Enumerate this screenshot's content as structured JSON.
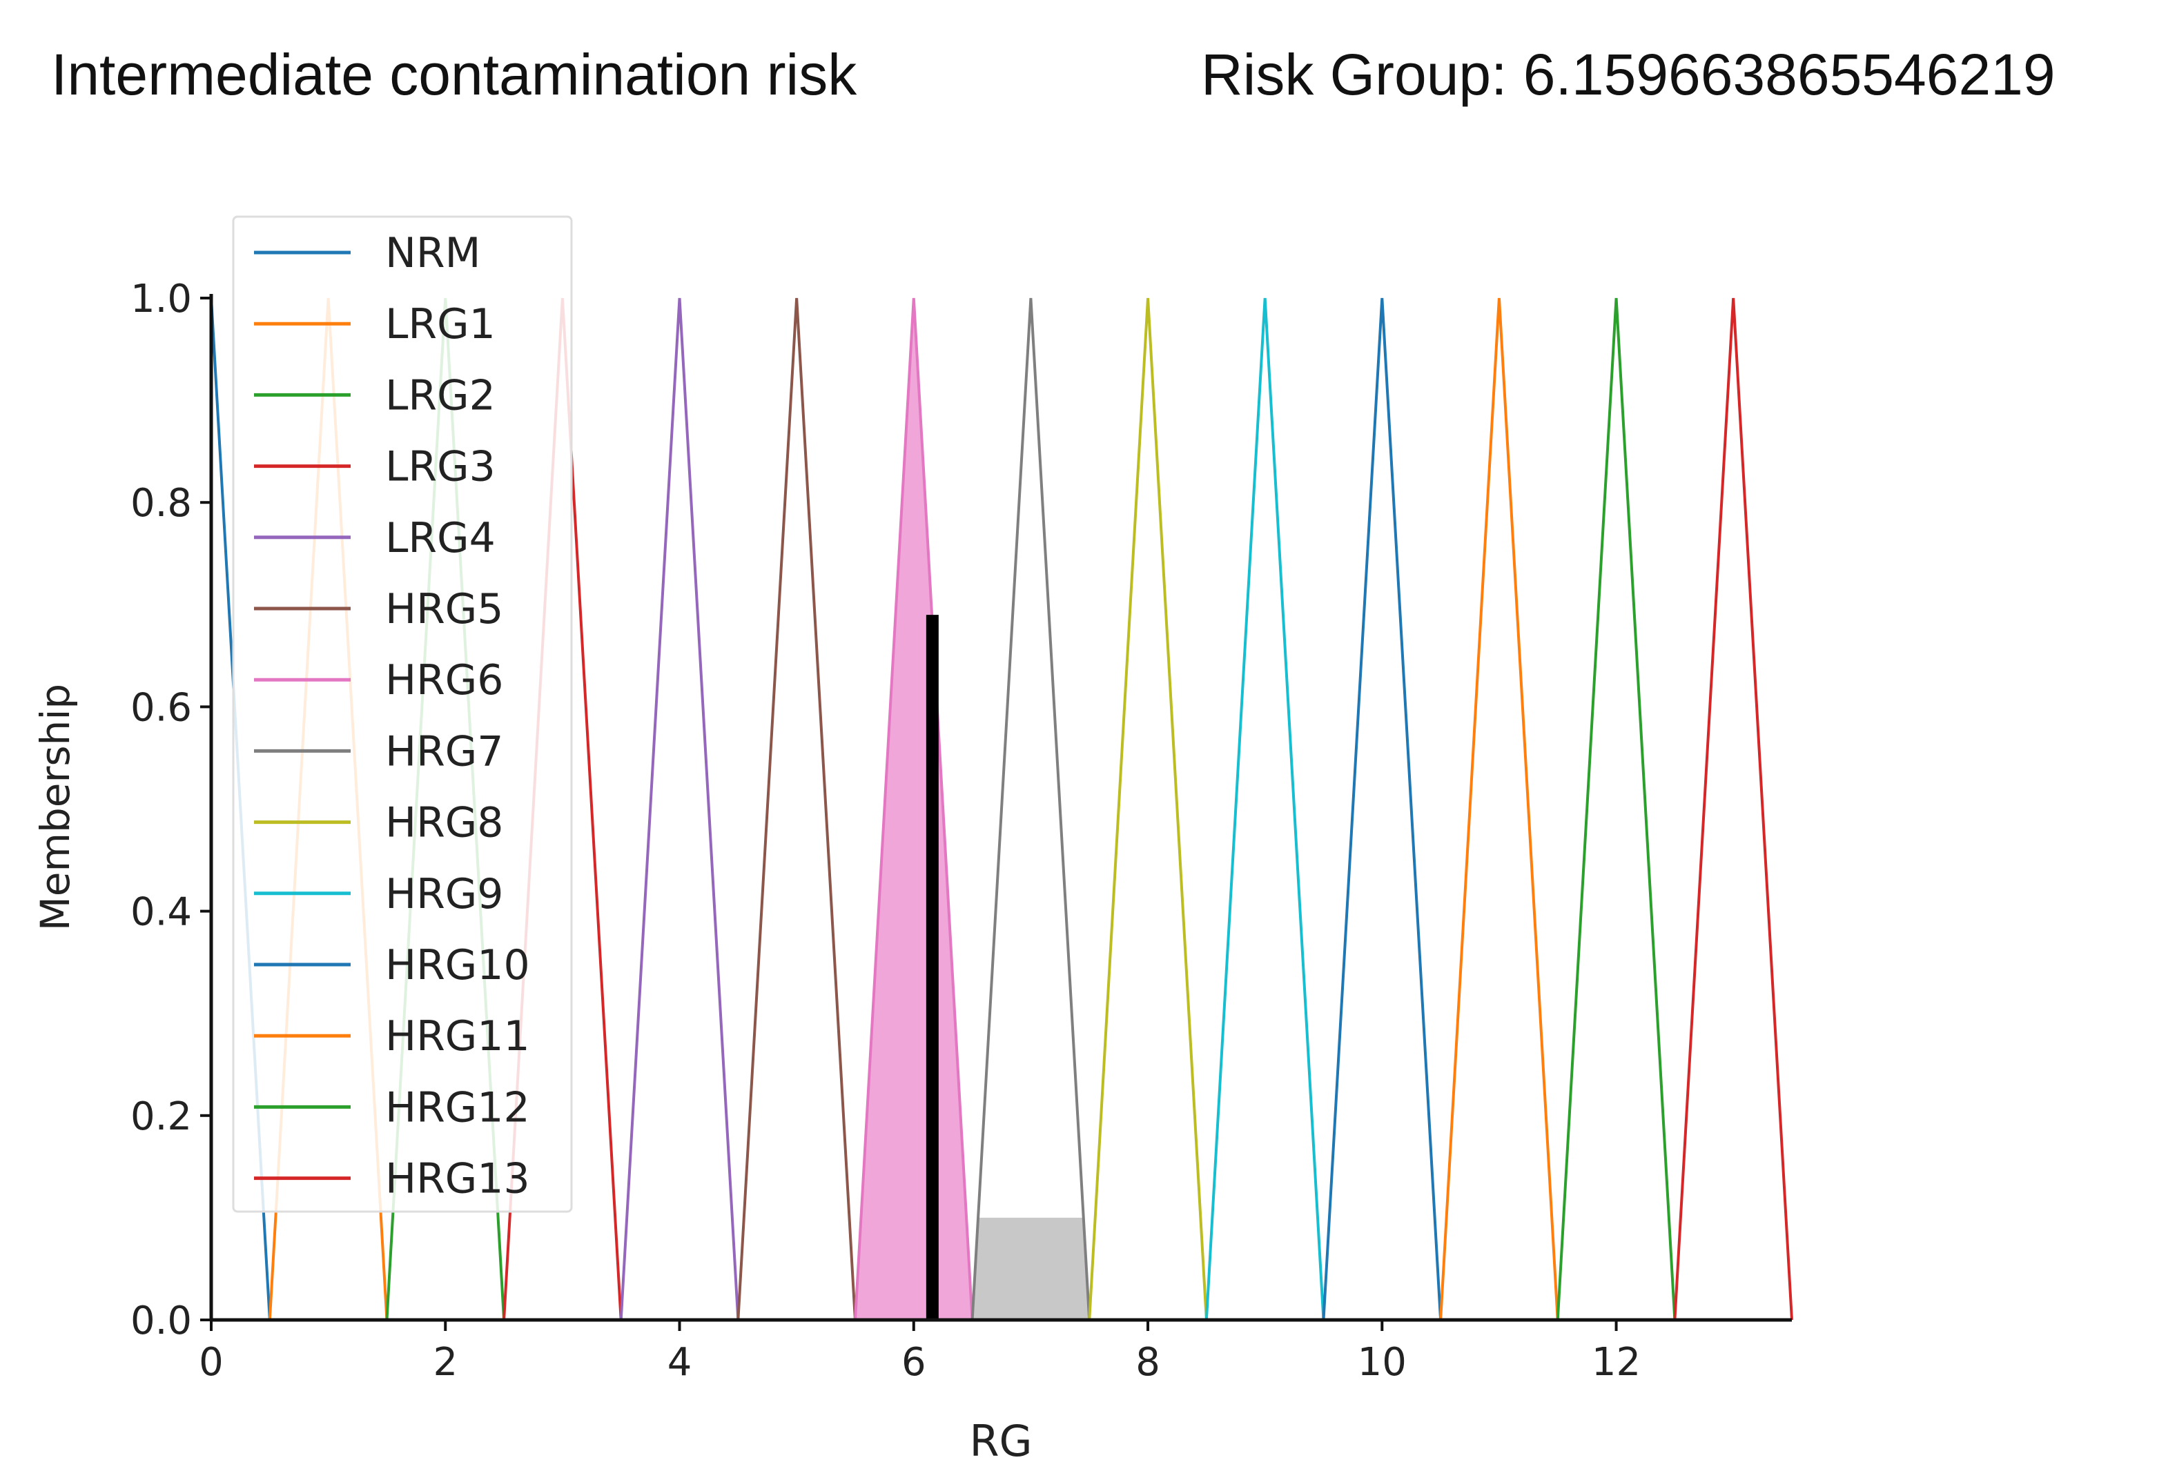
{
  "header": {
    "left_text": "Intermediate contamination risk",
    "right_text": "Risk Group: 6.159663865546219"
  },
  "chart_data": {
    "type": "line",
    "xlabel": "RG",
    "ylabel": "Membership",
    "xlim": [
      0,
      13.5
    ],
    "ylim": [
      0,
      1
    ],
    "xticks": [
      0,
      2,
      4,
      6,
      8,
      10,
      12
    ],
    "yticks": [
      0.0,
      0.2,
      0.4,
      0.6,
      0.8,
      1.0
    ],
    "x_tick_labels": [
      "0",
      "2",
      "4",
      "6",
      "8",
      "10",
      "12"
    ],
    "y_tick_labels": [
      "0.0",
      "0.2",
      "0.4",
      "0.6",
      "0.8",
      "1.0"
    ],
    "legend_position": "upper-left",
    "series": [
      {
        "name": "NRM",
        "color": "#1f77b4",
        "x": [
          0,
          0,
          0.5
        ],
        "y": [
          0,
          1,
          0
        ]
      },
      {
        "name": "LRG1",
        "color": "#ff7f0e",
        "x": [
          0.5,
          1,
          1.5
        ],
        "y": [
          0,
          1,
          0
        ]
      },
      {
        "name": "LRG2",
        "color": "#2ca02c",
        "x": [
          1.5,
          2,
          2.5
        ],
        "y": [
          0,
          1,
          0
        ]
      },
      {
        "name": "LRG3",
        "color": "#d62728",
        "x": [
          2.5,
          3,
          3.5
        ],
        "y": [
          0,
          1,
          0
        ]
      },
      {
        "name": "LRG4",
        "color": "#9467bd",
        "x": [
          3.5,
          4,
          4.5
        ],
        "y": [
          0,
          1,
          0
        ]
      },
      {
        "name": "HRG5",
        "color": "#8c564b",
        "x": [
          4.5,
          5,
          5.5
        ],
        "y": [
          0,
          1,
          0
        ]
      },
      {
        "name": "HRG6",
        "color": "#e377c2",
        "x": [
          5.5,
          6,
          6.5
        ],
        "y": [
          0,
          1,
          0
        ]
      },
      {
        "name": "HRG7",
        "color": "#7f7f7f",
        "x": [
          6.5,
          7,
          7.5
        ],
        "y": [
          0,
          1,
          0
        ]
      },
      {
        "name": "HRG8",
        "color": "#bcbd22",
        "x": [
          7.5,
          8,
          8.5
        ],
        "y": [
          0,
          1,
          0
        ]
      },
      {
        "name": "HRG9",
        "color": "#17becf",
        "x": [
          8.5,
          9,
          9.5
        ],
        "y": [
          0,
          1,
          0
        ]
      },
      {
        "name": "HRG10",
        "color": "#1f77b4",
        "x": [
          9.5,
          10,
          10.5
        ],
        "y": [
          0,
          1,
          0
        ]
      },
      {
        "name": "HRG11",
        "color": "#ff7f0e",
        "x": [
          10.5,
          11,
          11.5
        ],
        "y": [
          0,
          1,
          0
        ]
      },
      {
        "name": "HRG12",
        "color": "#2ca02c",
        "x": [
          11.5,
          12,
          12.5
        ],
        "y": [
          0,
          1,
          0
        ]
      },
      {
        "name": "HRG13",
        "color": "#d62728",
        "x": [
          12.5,
          13,
          13.5
        ],
        "y": [
          0,
          1,
          0
        ]
      }
    ],
    "activation_fills": [
      {
        "x": [
          5.5,
          6,
          6.5
        ],
        "y": [
          0,
          1,
          0
        ],
        "color": "#f0a6d8"
      },
      {
        "x": [
          6.5,
          6.55,
          7.45,
          7.5
        ],
        "y": [
          0,
          0.1,
          0.1,
          0
        ],
        "color": "#c8c8c8"
      }
    ],
    "crisp_output": {
      "x": 6.159663865546219,
      "y": 0.69,
      "color": "#000000"
    }
  }
}
